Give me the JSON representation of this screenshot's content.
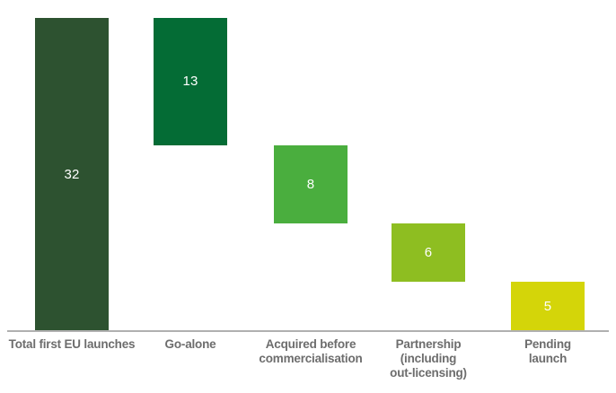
{
  "chart_data": {
    "type": "bar",
    "subtype": "waterfall",
    "title": "",
    "categories": [
      "Total first EU launches",
      "Go-alone",
      "Acquired before\ncommercialisation",
      "Partnership\n(including\nout-licensing)",
      "Pending launch"
    ],
    "values": [
      32,
      13,
      8,
      6,
      5
    ],
    "value_labels": [
      "32",
      "13",
      "8",
      "6",
      "5"
    ],
    "cumulative_ranges": [
      [
        0,
        32
      ],
      [
        19,
        32
      ],
      [
        11,
        19
      ],
      [
        5,
        11
      ],
      [
        0,
        5
      ]
    ],
    "ylim": [
      0,
      32
    ],
    "grid": false,
    "legend": false,
    "bar_colors": [
      "#2d5230",
      "#046c35",
      "#4aae3e",
      "#8ebe21",
      "#d4d509"
    ],
    "axis_line_color": "#b0b0b0",
    "category_label_color": "#6d6d6d",
    "value_label_color": "#ffffff"
  }
}
